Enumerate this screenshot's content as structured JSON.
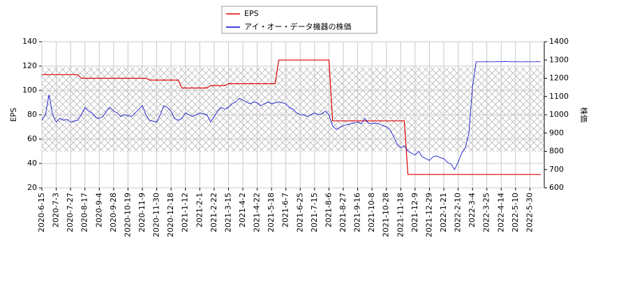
{
  "chart_data": {
    "type": "line",
    "y_label": "EPS",
    "y2_label": "株価",
    "x": [
      "2020-6-15",
      null,
      null,
      null,
      "2020-7-3",
      null,
      null,
      null,
      "2020-7-27",
      null,
      null,
      null,
      "2020-8-17",
      null,
      null,
      null,
      "2020-9-4",
      null,
      null,
      null,
      "2020-9-28",
      null,
      null,
      null,
      "2020-10-19",
      null,
      null,
      null,
      "2020-11-9",
      null,
      null,
      null,
      "2020-11-30",
      null,
      null,
      null,
      "2020-12-18",
      null,
      null,
      null,
      "2021-1-12",
      null,
      null,
      null,
      "2021-2-1",
      null,
      null,
      null,
      "2021-2-22",
      null,
      null,
      null,
      "2021-3-15",
      null,
      null,
      null,
      "2021-4-2",
      null,
      null,
      null,
      "2021-4-22",
      null,
      null,
      null,
      "2021-5-18",
      null,
      null,
      null,
      "2021-6-7",
      null,
      null,
      null,
      "2021-6-25",
      null,
      null,
      null,
      "2021-7-15",
      null,
      null,
      null,
      "2021-8-6",
      null,
      null,
      null,
      "2021-8-27",
      null,
      null,
      null,
      "2021-9-16",
      null,
      null,
      null,
      "2021-10-8",
      null,
      null,
      null,
      "2021-10-28",
      null,
      null,
      null,
      "2021-11-18",
      null,
      null,
      null,
      "2021-12-9",
      null,
      null,
      null,
      "2021-12-29",
      null,
      null,
      null,
      "2022-1-21",
      null,
      null,
      null,
      "2022-2-10",
      null,
      null,
      null,
      "2022-3-4",
      null,
      null,
      null,
      "2022-3-25",
      null,
      null,
      null,
      "2022-4-14",
      null,
      null,
      null,
      "2022-5-10",
      null,
      null,
      null,
      "2022-5-30",
      null,
      null,
      null
    ],
    "series": [
      {
        "name": "EPS",
        "color": "#dd0000",
        "axis": "y",
        "values": [
          113,
          113,
          113,
          113,
          113,
          113,
          113,
          113,
          113,
          113,
          113,
          110,
          110,
          110,
          110,
          110,
          110,
          110,
          110,
          110,
          110,
          110,
          110,
          110,
          110,
          110,
          110,
          110,
          110,
          110,
          108.5,
          108.5,
          108.5,
          108.5,
          108.5,
          108.5,
          108.5,
          108.5,
          108.5,
          102,
          102,
          102,
          102,
          102,
          102,
          102,
          102,
          104,
          104,
          104,
          104,
          104,
          105.5,
          105.5,
          105.5,
          105.5,
          105.5,
          105.5,
          105.5,
          105.5,
          105.5,
          105.5,
          105.5,
          105.5,
          105.5,
          105.5,
          125,
          125,
          125,
          125,
          125,
          125,
          125,
          125,
          125,
          125,
          125,
          125,
          125,
          125,
          125,
          75,
          75,
          75,
          75,
          75,
          75,
          75,
          75,
          75,
          75,
          75,
          75,
          75,
          75,
          75,
          75,
          75,
          75,
          75,
          75,
          75,
          31,
          31,
          31,
          31,
          31,
          31,
          31,
          31,
          31,
          31,
          31,
          31,
          31,
          31,
          31,
          31,
          31,
          31,
          31,
          31,
          31,
          31,
          31,
          31,
          31,
          31,
          31,
          31,
          31,
          31,
          31,
          31,
          31,
          31,
          31,
          31,
          31,
          31
        ]
      },
      {
        "name": "アイ・オー・データ機器の株価",
        "color": "#0000cc",
        "axis": "y2",
        "values": [
          970,
          1000,
          1110,
          1000,
          960,
          980,
          970,
          975,
          960,
          965,
          970,
          1000,
          1040,
          1020,
          1010,
          985,
          980,
          990,
          1020,
          1040,
          1020,
          1010,
          990,
          1000,
          995,
          990,
          1010,
          1030,
          1050,
          1000,
          970,
          965,
          960,
          1000,
          1050,
          1040,
          1020,
          980,
          970,
          980,
          1010,
          1000,
          990,
          1000,
          1010,
          1005,
          1000,
          960,
          990,
          1020,
          1040,
          1030,
          1040,
          1060,
          1070,
          1090,
          1080,
          1070,
          1060,
          1070,
          1065,
          1050,
          1060,
          1070,
          1060,
          1065,
          1070,
          1065,
          1060,
          1040,
          1030,
          1010,
          1000,
          1000,
          990,
          1000,
          1010,
          1000,
          1005,
          1020,
          1000,
          940,
          920,
          930,
          940,
          945,
          950,
          955,
          960,
          950,
          980,
          955,
          950,
          955,
          950,
          940,
          935,
          920,
          880,
          840,
          820,
          830,
          800,
          790,
          780,
          800,
          770,
          760,
          750,
          770,
          775,
          765,
          760,
          740,
          730,
          700,
          740,
          790,
          820,
          900,
          1150,
          1290,
          1290,
          1290,
          1291,
          1290,
          1290,
          1291,
          1290,
          1292,
          1291,
          1290,
          1291,
          1290,
          1290,
          1291,
          1290,
          1290,
          1291,
          1290
        ]
      }
    ],
    "ylim": [
      20,
      140
    ],
    "yticks": [
      20,
      40,
      60,
      80,
      100,
      120,
      140
    ],
    "y2lim": [
      600,
      1400
    ],
    "y2ticks": [
      600,
      700,
      800,
      900,
      1000,
      1100,
      1200,
      1300,
      1400
    ],
    "grid": true,
    "legend": "top"
  }
}
